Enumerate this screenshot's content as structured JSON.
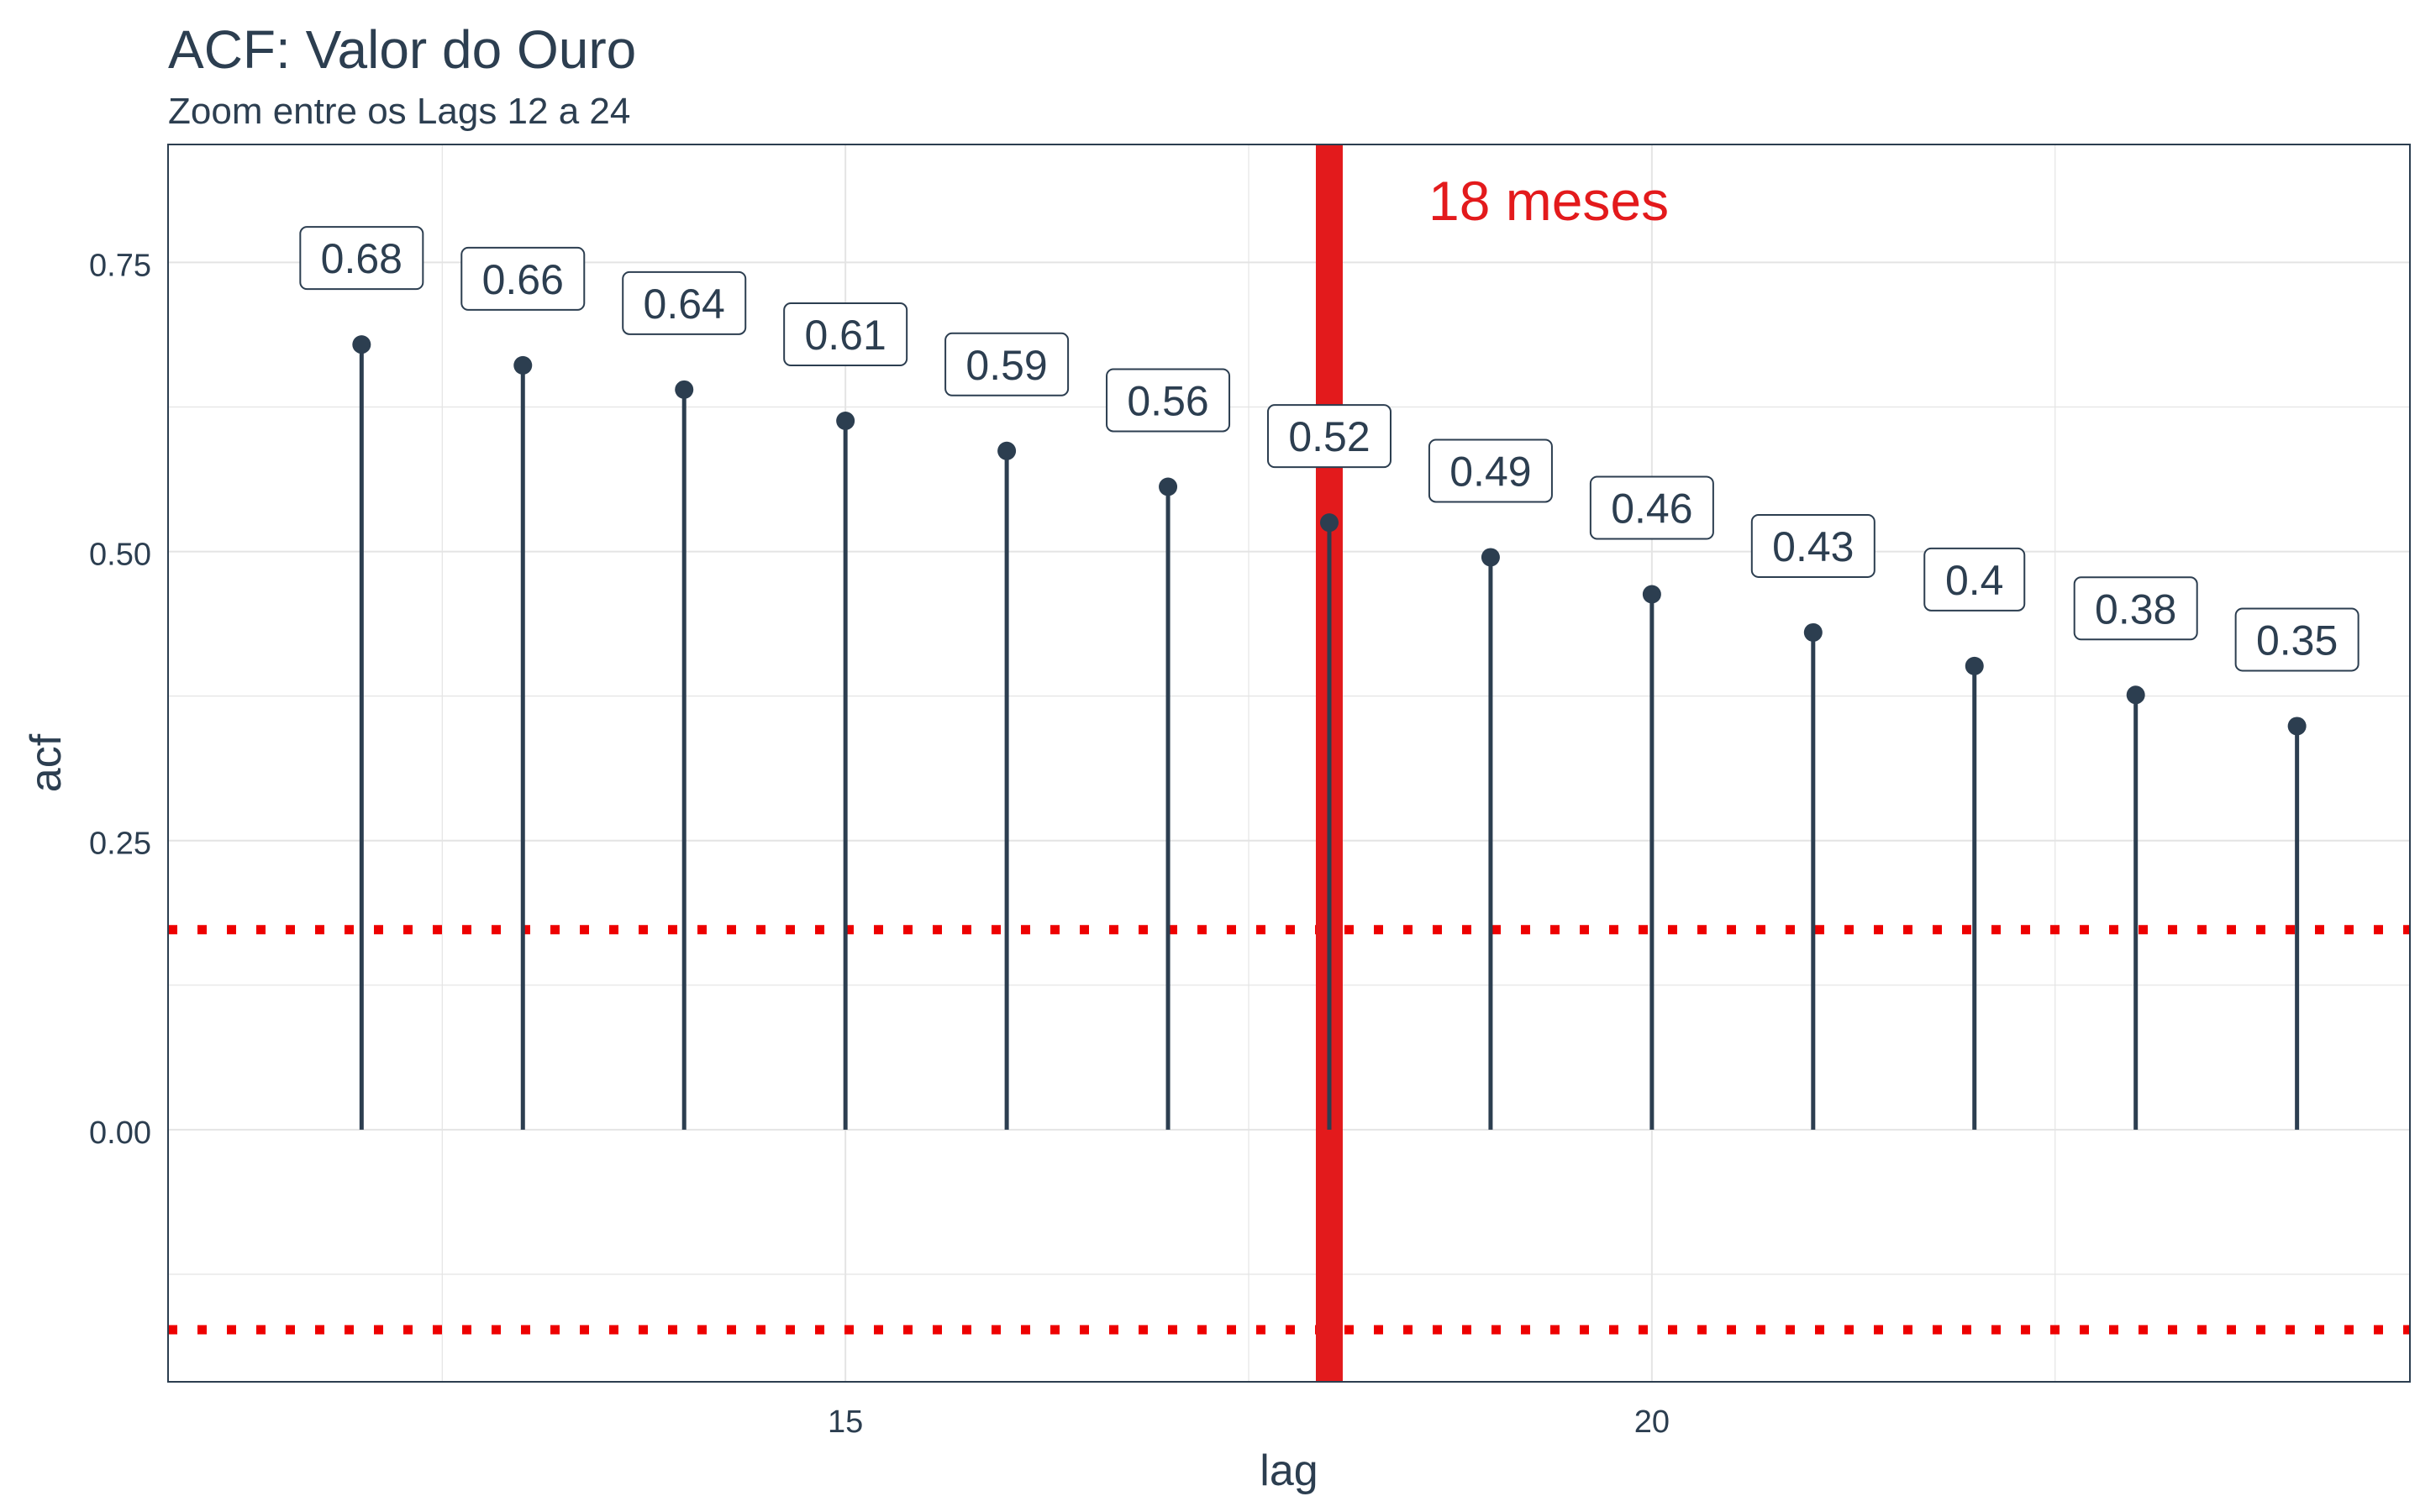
{
  "chart_data": {
    "type": "lollipop",
    "title": "ACF: Valor do Ouro",
    "subtitle": "Zoom entre os Lags 12 a 24",
    "xlabel": "lag",
    "ylabel": "acf",
    "x": [
      12,
      13,
      14,
      15,
      16,
      17,
      18,
      19,
      20,
      21,
      22,
      23,
      24
    ],
    "values": [
      0.679,
      0.661,
      0.64,
      0.613,
      0.587,
      0.556,
      0.525,
      0.495,
      0.463,
      0.43,
      0.401,
      0.376,
      0.349
    ],
    "data_labels": [
      "0.68",
      "0.66",
      "0.64",
      "0.61",
      "0.59",
      "0.56",
      "0.52",
      "0.49",
      "0.46",
      "0.43",
      "0.4",
      "0.38",
      "0.35"
    ],
    "xlim": [
      10.8,
      24.7
    ],
    "ylim": [
      -0.218,
      0.852
    ],
    "x_ticks": [
      15,
      20
    ],
    "x_tick_labels": [
      "15",
      "20"
    ],
    "y_ticks": [
      0,
      0.25,
      0.5,
      0.75
    ],
    "y_tick_labels": [
      "0.00",
      "0.25",
      "0.50",
      "0.75"
    ],
    "confidence_bounds": [
      0.173,
      -0.173
    ],
    "highlight": {
      "x": 18,
      "label": "18 meses",
      "color": "#e31a1c"
    },
    "grid": true,
    "colors": {
      "series": "#2c3e50",
      "bounds": "#ee0000",
      "highlight": "#e31a1c",
      "grid": "#e4e4e4",
      "text": "#2c3e50"
    }
  }
}
